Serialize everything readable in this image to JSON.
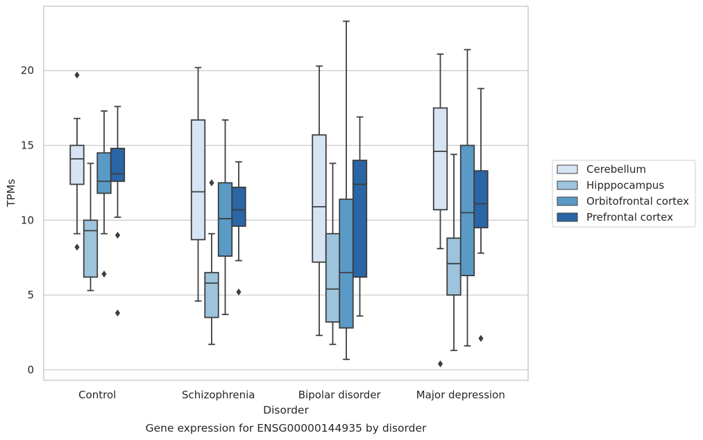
{
  "chart_data": {
    "type": "box",
    "title": "",
    "caption": "Gene expression for ENSG00000144935 by disorder",
    "xlabel": "Disorder",
    "ylabel": "TPMs",
    "categories": [
      "Control",
      "Schizophrenia",
      "Bipolar disorder",
      "Major depression"
    ],
    "yticks": [
      "0",
      "5",
      "10",
      "15",
      "20"
    ],
    "ylim": [
      -0.7,
      24.3
    ],
    "grid": "horizontal",
    "legend_position": "right",
    "series": [
      {
        "name": "Cerebellum",
        "color": "#d6e4f3",
        "boxes": [
          {
            "whislo": 9.1,
            "q1": 12.4,
            "med": 14.1,
            "q3": 15.0,
            "whishi": 16.8,
            "fliers": [
              19.7,
              8.2
            ]
          },
          {
            "whislo": 4.6,
            "q1": 8.7,
            "med": 11.9,
            "q3": 16.7,
            "whishi": 20.2,
            "fliers": []
          },
          {
            "whislo": 2.3,
            "q1": 7.2,
            "med": 10.9,
            "q3": 15.7,
            "whishi": 20.3,
            "fliers": []
          },
          {
            "whislo": 8.1,
            "q1": 10.7,
            "med": 14.6,
            "q3": 17.5,
            "whishi": 21.1,
            "fliers": [
              0.4
            ]
          }
        ]
      },
      {
        "name": "Hipppocampus",
        "color": "#9dc3dd",
        "boxes": [
          {
            "whislo": 5.3,
            "q1": 6.2,
            "med": 9.3,
            "q3": 10.0,
            "whishi": 13.8,
            "fliers": []
          },
          {
            "whislo": 1.7,
            "q1": 3.5,
            "med": 5.8,
            "q3": 6.5,
            "whishi": 9.1,
            "fliers": [
              12.5
            ]
          },
          {
            "whislo": 1.7,
            "q1": 3.2,
            "med": 5.4,
            "q3": 9.1,
            "whishi": 13.8,
            "fliers": []
          },
          {
            "whislo": 1.3,
            "q1": 5.0,
            "med": 7.1,
            "q3": 8.8,
            "whishi": 14.4,
            "fliers": []
          }
        ]
      },
      {
        "name": "Orbitofrontal cortex",
        "color": "#5a9ac6",
        "boxes": [
          {
            "whislo": 9.1,
            "q1": 11.8,
            "med": 12.6,
            "q3": 14.5,
            "whishi": 17.3,
            "fliers": [
              6.4
            ]
          },
          {
            "whislo": 3.7,
            "q1": 7.6,
            "med": 10.1,
            "q3": 12.5,
            "whishi": 16.7,
            "fliers": []
          },
          {
            "whislo": 0.7,
            "q1": 2.8,
            "med": 6.5,
            "q3": 11.4,
            "whishi": 23.3,
            "fliers": []
          },
          {
            "whislo": 1.6,
            "q1": 6.3,
            "med": 10.5,
            "q3": 15.0,
            "whishi": 21.4,
            "fliers": []
          }
        ]
      },
      {
        "name": "Prefrontal cortex",
        "color": "#2a65a6",
        "boxes": [
          {
            "whislo": 10.2,
            "q1": 12.6,
            "med": 13.1,
            "q3": 14.8,
            "whishi": 17.6,
            "fliers": [
              9.0,
              3.8
            ]
          },
          {
            "whislo": 7.3,
            "q1": 9.6,
            "med": 10.7,
            "q3": 12.2,
            "whishi": 13.9,
            "fliers": [
              5.2
            ]
          },
          {
            "whislo": 3.6,
            "q1": 6.2,
            "med": 12.4,
            "q3": 14.0,
            "whishi": 16.9,
            "fliers": []
          },
          {
            "whislo": 7.8,
            "q1": 9.5,
            "med": 11.1,
            "q3": 13.3,
            "whishi": 18.8,
            "fliers": [
              2.1
            ]
          }
        ]
      }
    ]
  }
}
